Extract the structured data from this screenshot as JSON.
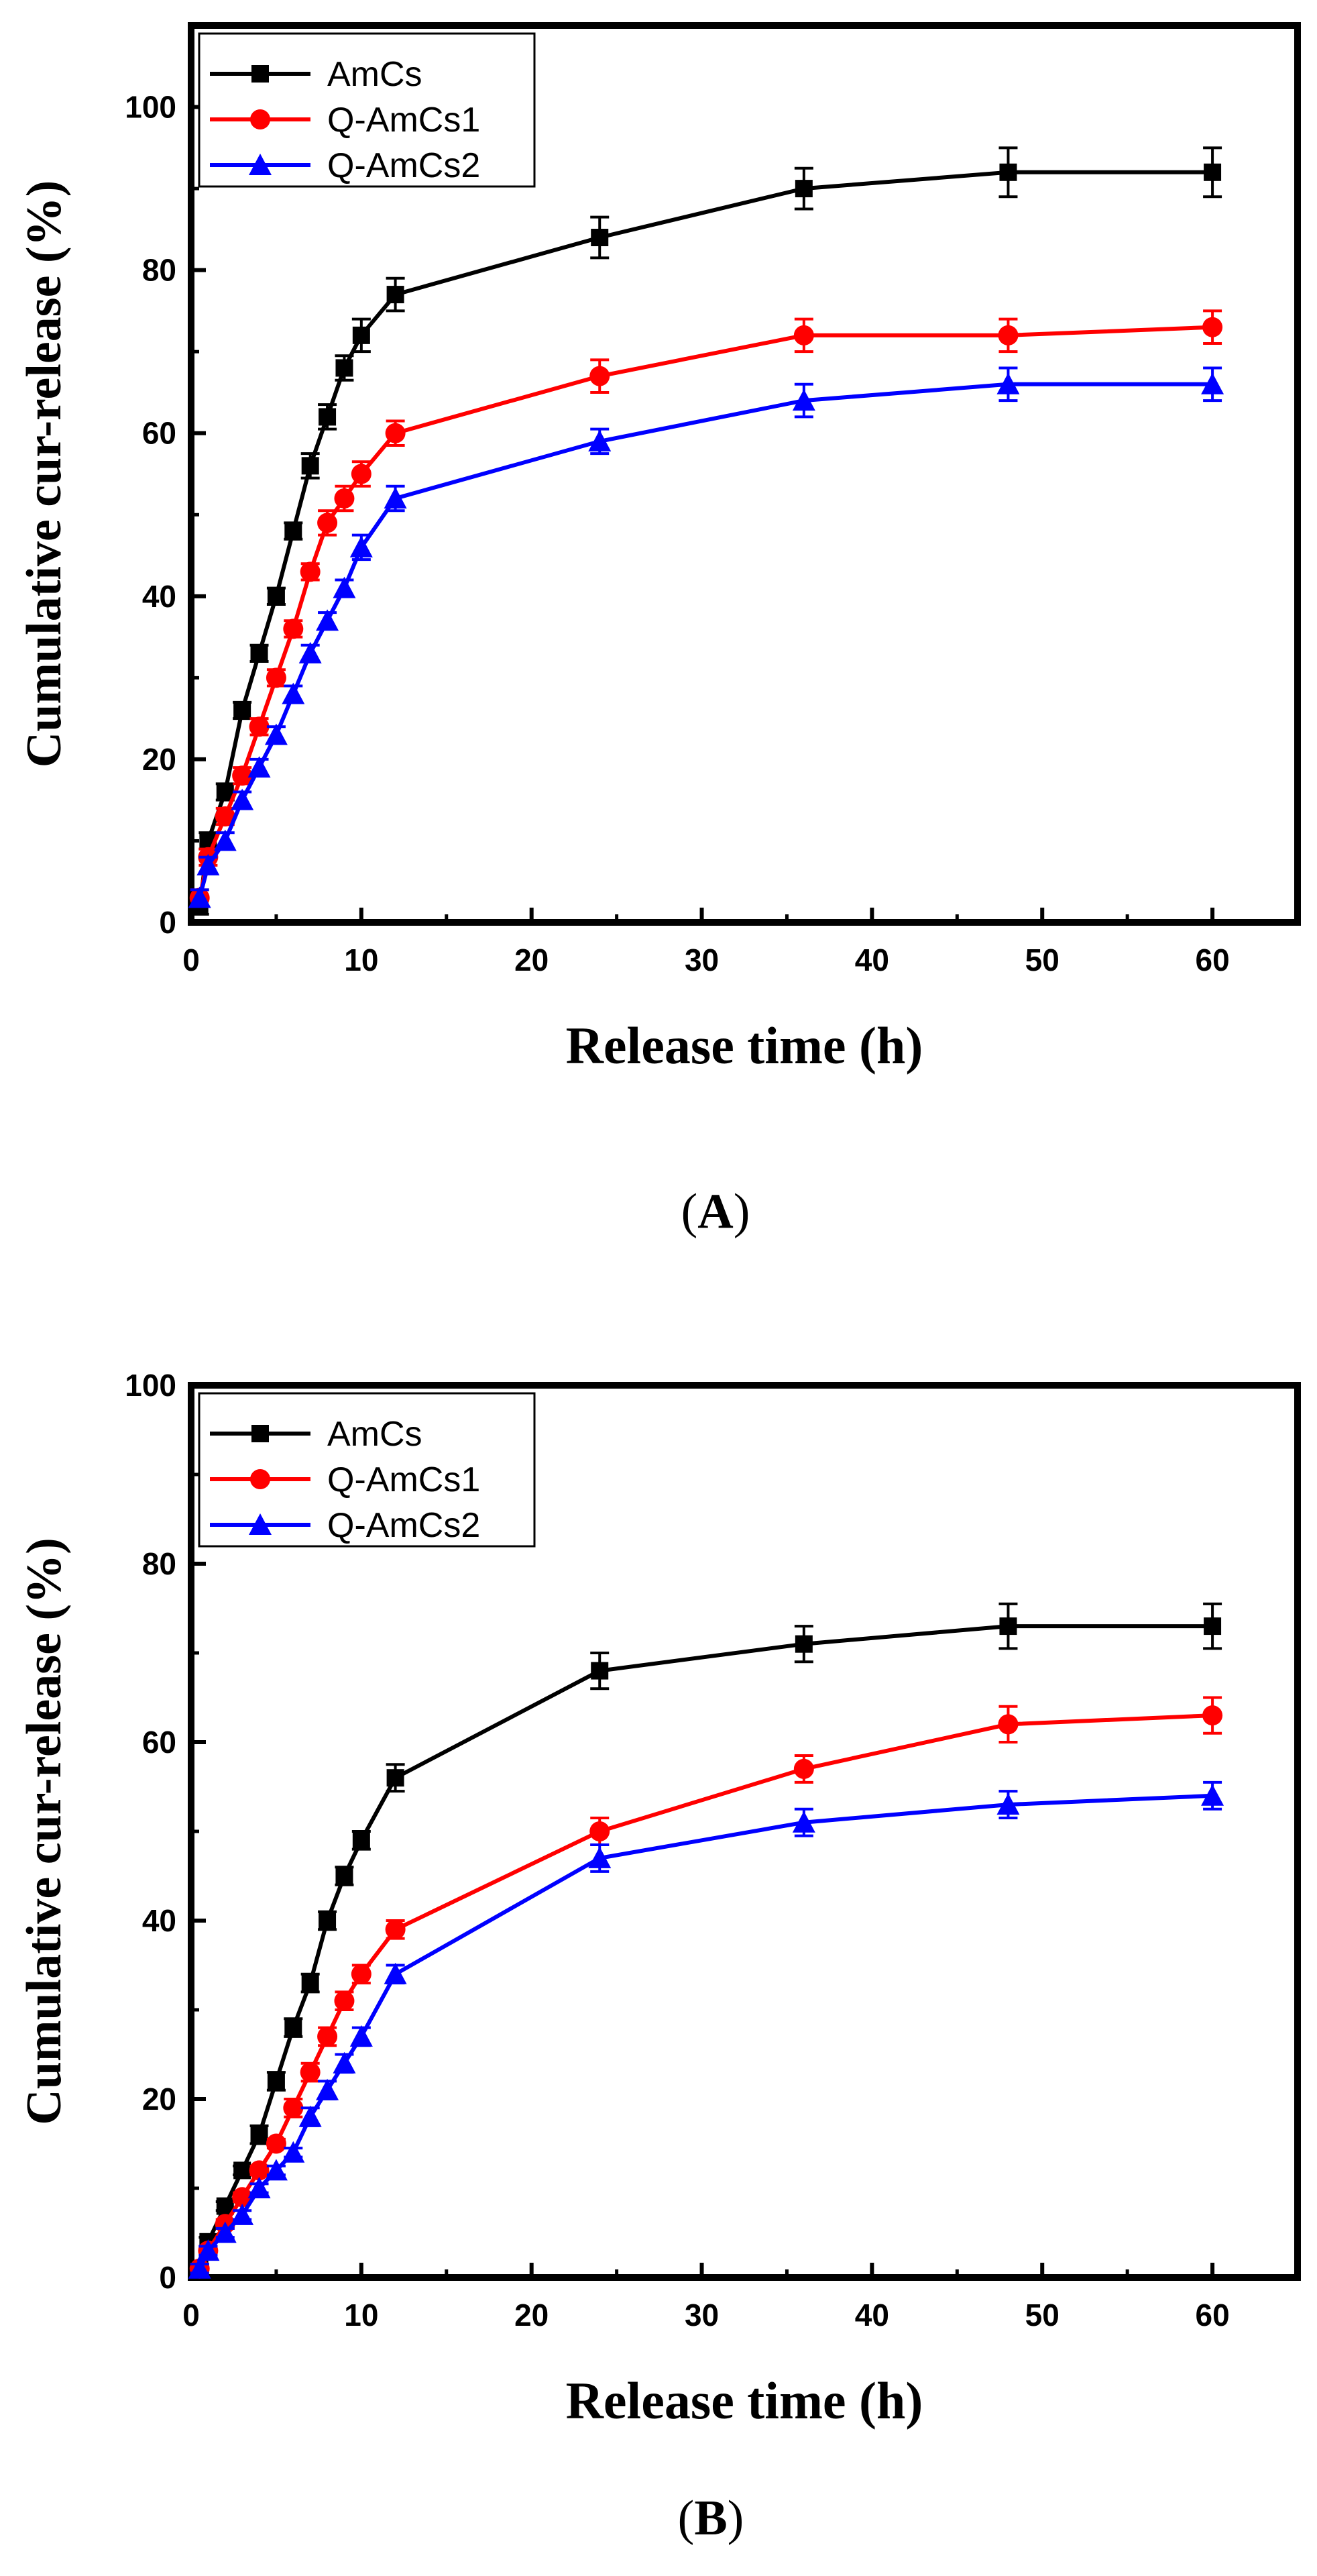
{
  "colors": {
    "AmCs": "#000000",
    "Q-AmCs1": "#ff0000",
    "Q-AmCs2": "#0000ff",
    "axes": "#000000",
    "background": "#ffffff"
  },
  "chart_data": [
    {
      "panel": "A",
      "caption": {
        "open": "(",
        "letter": "A",
        "close": ")"
      },
      "type": "line",
      "title": "",
      "xlabel": "Release time (h)",
      "ylabel": "Cumulative cur-release (%)",
      "xlim": [
        0,
        65
      ],
      "ylim": [
        0,
        110
      ],
      "xticks": [
        0,
        10,
        20,
        30,
        40,
        50,
        60
      ],
      "yticks": [
        0,
        20,
        40,
        60,
        80,
        100
      ],
      "legend_position": "top-left",
      "x": [
        0.5,
        1,
        2,
        3,
        4,
        5,
        6,
        7,
        8,
        9,
        10,
        12,
        24,
        36,
        48,
        60
      ],
      "series": [
        {
          "name": "AmCs",
          "marker": "square",
          "values": [
            2,
            10,
            16,
            26,
            33,
            40,
            48,
            56,
            62,
            68,
            72,
            77,
            84,
            90,
            92,
            92
          ],
          "errors": [
            1,
            1,
            1,
            1,
            1,
            1,
            1,
            1.5,
            1.5,
            1.5,
            2,
            2,
            2.5,
            2.5,
            3,
            3
          ]
        },
        {
          "name": "Q-AmCs1",
          "marker": "circle",
          "values": [
            3,
            8,
            13,
            18,
            24,
            30,
            36,
            43,
            49,
            52,
            55,
            60,
            67,
            72,
            72,
            73
          ],
          "errors": [
            1,
            1,
            1,
            1,
            1,
            1,
            1,
            1,
            1.5,
            1.5,
            1.5,
            1.5,
            2,
            2,
            2,
            2
          ]
        },
        {
          "name": "Q-AmCs2",
          "marker": "triangle",
          "values": [
            3,
            7,
            10,
            15,
            19,
            23,
            28,
            33,
            37,
            41,
            46,
            52,
            59,
            64,
            66,
            66
          ],
          "errors": [
            1,
            1,
            1,
            1,
            1,
            1,
            1,
            1,
            1,
            1,
            1.5,
            1.5,
            1.5,
            2,
            2,
            2
          ]
        }
      ]
    },
    {
      "panel": "B",
      "caption": {
        "open": "(",
        "letter": "B",
        "close": ")"
      },
      "type": "line",
      "title": "",
      "xlabel": "Release time (h)",
      "ylabel": "Cumulative cur-release (%)",
      "xlim": [
        0,
        65
      ],
      "ylim": [
        0,
        100
      ],
      "xticks": [
        0,
        10,
        20,
        30,
        40,
        50,
        60
      ],
      "yticks": [
        0,
        20,
        40,
        60,
        80,
        100
      ],
      "legend_position": "top-left",
      "x": [
        0.5,
        1,
        2,
        3,
        4,
        5,
        6,
        7,
        8,
        9,
        10,
        12,
        24,
        36,
        48,
        60
      ],
      "series": [
        {
          "name": "AmCs",
          "marker": "square",
          "values": [
            1,
            4,
            8,
            12,
            16,
            22,
            28,
            33,
            40,
            45,
            49,
            56,
            68,
            71,
            73,
            73
          ],
          "errors": [
            0.5,
            0.5,
            0.5,
            0.5,
            1,
            1,
            1,
            1,
            1,
            1,
            1,
            1.5,
            2,
            2,
            2.5,
            2.5
          ]
        },
        {
          "name": "Q-AmCs1",
          "marker": "circle",
          "values": [
            1,
            3,
            6,
            9,
            12,
            15,
            19,
            23,
            27,
            31,
            34,
            39,
            50,
            57,
            62,
            63
          ],
          "errors": [
            0.5,
            0.5,
            0.5,
            0.5,
            0.5,
            0.5,
            1,
            1,
            1,
            1,
            1,
            1,
            1.5,
            1.5,
            2,
            2
          ]
        },
        {
          "name": "Q-AmCs2",
          "marker": "triangle",
          "values": [
            1,
            3,
            5,
            7,
            10,
            12,
            14,
            18,
            21,
            24,
            27,
            34,
            47,
            51,
            53,
            54
          ],
          "errors": [
            0.5,
            0.5,
            0.5,
            0.5,
            0.5,
            0.5,
            0.5,
            1,
            1,
            1,
            1,
            1,
            1.5,
            1.5,
            1.5,
            1.5
          ]
        }
      ]
    }
  ]
}
